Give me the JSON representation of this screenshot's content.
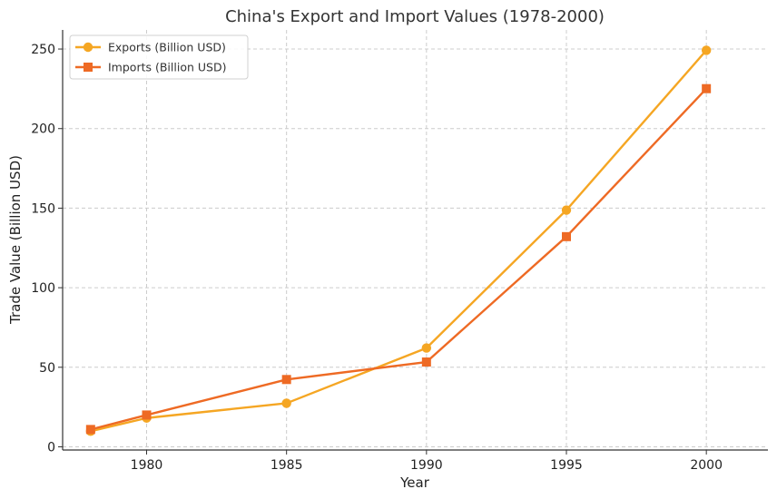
{
  "chart_data": {
    "type": "line",
    "title": "China's Export and Import Values (1978-2000)",
    "xlabel": "Year",
    "ylabel": "Trade Value (Billion USD)",
    "x": [
      1978,
      1980,
      1985,
      1990,
      1995,
      2000
    ],
    "xlim": [
      1977,
      2002.2
    ],
    "ylim": [
      -2,
      262
    ],
    "xticks": [
      1980,
      1985,
      1990,
      1995,
      2000
    ],
    "yticks": [
      0,
      50,
      100,
      150,
      200,
      250
    ],
    "grid": true,
    "legend_position": "upper-left",
    "series": [
      {
        "name": "Exports (Billion USD)",
        "values": [
          9.8,
          18.1,
          27.4,
          62.1,
          148.8,
          249.2
        ],
        "color": "#f5a623",
        "marker": "circle"
      },
      {
        "name": "Imports (Billion USD)",
        "values": [
          10.9,
          20.0,
          42.3,
          53.3,
          132.1,
          225.1
        ],
        "color": "#ee6a24",
        "marker": "square"
      }
    ]
  }
}
